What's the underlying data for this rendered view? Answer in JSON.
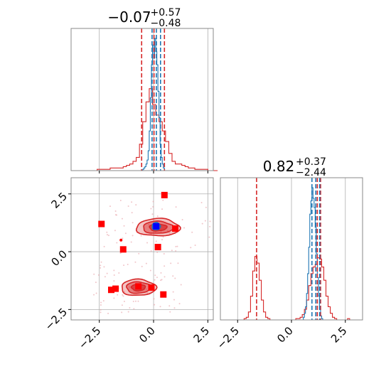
{
  "chart_data": [
    {
      "type": "histogram",
      "panel": "top-left",
      "title": {
        "value": "−0.07",
        "plus": "+0.57",
        "minus": "−0.48"
      },
      "xlim": [
        -3.8,
        2.75
      ],
      "xticks": [
        -2.5,
        0.0,
        2.5
      ],
      "grid": true,
      "red_lines": [
        -0.55,
        0.02,
        0.5
      ],
      "blue_lines": [
        -0.07,
        0.13,
        0.32
      ],
      "series": [
        {
          "color": "#d62728",
          "bins_start": -3.8,
          "bin_width": 0.15,
          "values": [
            0,
            0,
            0,
            0,
            0,
            0,
            0,
            0,
            0.01,
            0.01,
            0.01,
            0.01,
            0.02,
            0.02,
            0.02,
            0.02,
            0.03,
            0.04,
            0.05,
            0.07,
            0.1,
            0.2,
            0.37,
            0.52,
            0.62,
            0.5,
            0.42,
            0.37,
            0.3,
            0.22,
            0.13,
            0.07,
            0.05,
            0.05,
            0.04,
            0.03,
            0.02,
            0.02,
            0.01,
            0.01,
            0.01,
            0.01,
            0,
            0,
            0
          ]
        },
        {
          "color": "#1f77b4",
          "bins_start": -0.55,
          "bin_width": 0.05,
          "values": [
            0,
            0.01,
            0.02,
            0.03,
            0.05,
            0.08,
            0.15,
            0.3,
            0.55,
            0.8,
            0.95,
            0.85,
            1.0,
            0.9,
            0.8,
            0.6,
            0.4,
            0.2,
            0.1,
            0.05,
            0.02,
            0
          ]
        }
      ]
    },
    {
      "type": "contour",
      "panel": "bottom-left",
      "xlim": [
        -3.8,
        2.75
      ],
      "ylim": [
        -2.95,
        3.2
      ],
      "xticks": [
        -2.5,
        0.0,
        2.5
      ],
      "yticks": [
        -2.5,
        0.0,
        2.5
      ],
      "grid": true,
      "red_modes": [
        {
          "cx": 0.2,
          "cy": 1.05,
          "rx": 2.0,
          "ry": 0.75
        },
        {
          "cx": -0.7,
          "cy": -1.55,
          "rx": 1.6,
          "ry": 0.7
        }
      ],
      "blue_mode": {
        "cx": 0.12,
        "cy": 1.1,
        "rx": 0.38,
        "ry": 0.32
      },
      "red_squares": [
        [
          -2.4,
          1.2
        ],
        [
          0.5,
          2.45
        ],
        [
          1.0,
          1.0
        ],
        [
          -1.4,
          0.1
        ],
        [
          0.2,
          0.2
        ],
        [
          -0.7,
          -1.5
        ],
        [
          -0.1,
          -1.55
        ],
        [
          0.45,
          -1.85
        ],
        [
          -1.75,
          -1.6
        ],
        [
          -1.95,
          -1.65
        ]
      ],
      "blue_square": [
        0.12,
        1.1
      ],
      "red_dot": [
        -1.5,
        0.5
      ]
    },
    {
      "type": "histogram",
      "panel": "bottom-right",
      "title": {
        "value": "0.82",
        "plus": "+0.37",
        "minus": "−2.44"
      },
      "xlim": [
        -3.3,
        3.3
      ],
      "xticks": [
        -2.5,
        0.0,
        2.5
      ],
      "grid": true,
      "red_lines": [
        -1.62,
        1.2,
        1.35
      ],
      "blue_lines": [
        0.95,
        1.13,
        1.31
      ],
      "series": [
        {
          "color": "#d62728",
          "bins_start": -3.3,
          "bin_width": 0.1,
          "values": [
            0,
            0,
            0,
            0,
            0,
            0,
            0,
            0,
            0,
            0,
            0,
            0.01,
            0.02,
            0.06,
            0.18,
            0.37,
            0.48,
            0.43,
            0.3,
            0.15,
            0.06,
            0.02,
            0.01,
            0,
            0,
            0,
            0,
            0,
            0,
            0,
            0,
            0,
            0,
            0,
            0,
            0.01,
            0.01,
            0.02,
            0.04,
            0.08,
            0.15,
            0.26,
            0.35,
            0.4,
            0.42,
            0.47,
            0.46,
            0.4,
            0.3,
            0.18,
            0.1,
            0.05,
            0.02,
            0.01,
            0,
            0,
            0,
            0,
            0,
            0.01,
            0,
            0,
            0,
            0,
            0,
            0
          ]
        },
        {
          "color": "#1f77b4",
          "bins_start": 0.5,
          "bin_width": 0.05,
          "values": [
            0,
            0.02,
            0.05,
            0.1,
            0.2,
            0.35,
            0.55,
            0.8,
            0.9,
            1.0,
            0.92,
            0.85,
            0.7,
            0.5,
            0.32,
            0.18,
            0.08,
            0.03,
            0.01,
            0
          ]
        }
      ]
    }
  ]
}
